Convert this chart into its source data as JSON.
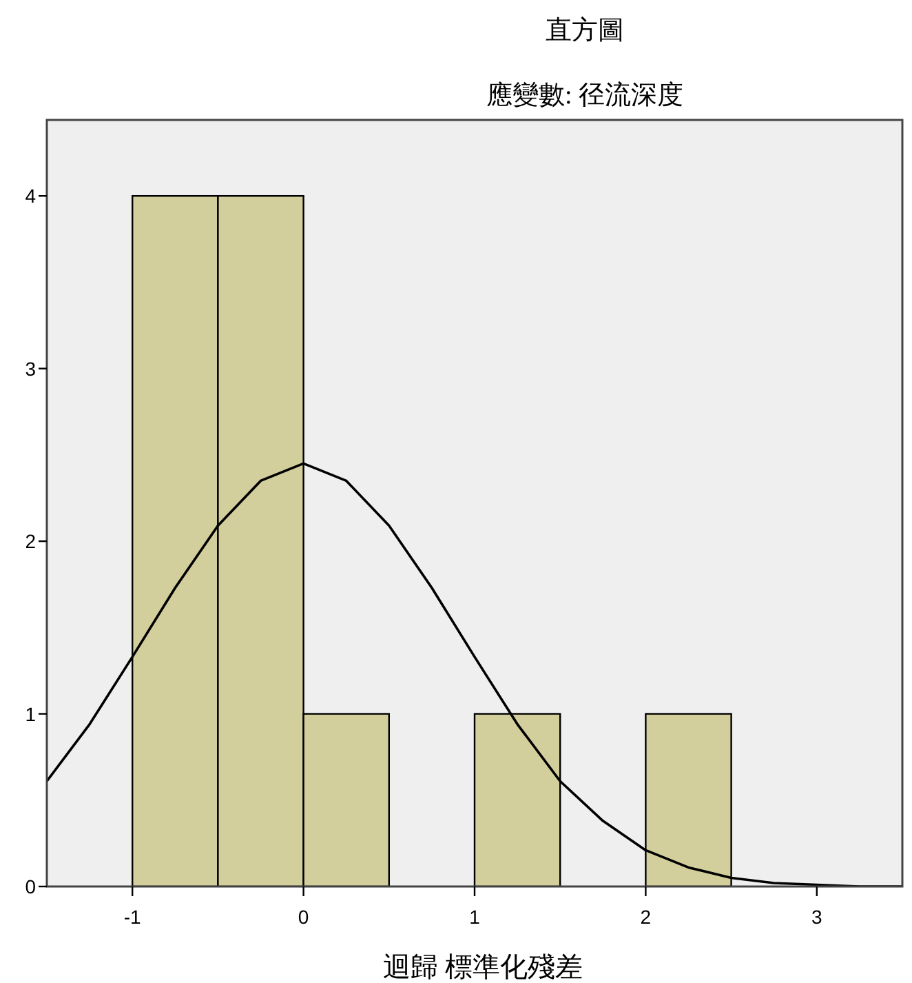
{
  "chart_data": {
    "type": "histogram",
    "title": "直方圖",
    "subtitle": "應變數: 径流深度",
    "xlabel": "迴歸 標準化殘差",
    "bins": [
      -1,
      -0.5,
      0,
      0.5,
      1,
      1.5,
      2,
      2.5
    ],
    "values": [
      4,
      4,
      1,
      0,
      1,
      0,
      1
    ],
    "color": "#d3cf9c",
    "series": [
      {
        "type": "line",
        "color": "#000000",
        "x": [
          -1.5,
          -1.25,
          -1,
          -0.75,
          -0.5,
          -0.25,
          0,
          0.25,
          0.5,
          0.75,
          1,
          1.25,
          1.5,
          1.75,
          2,
          2.25,
          2.5,
          2.75,
          3,
          3.25,
          3.5
        ],
        "values": [
          0.61,
          0.94,
          1.33,
          1.73,
          2.09,
          2.35,
          2.45,
          2.35,
          2.09,
          1.73,
          1.33,
          0.94,
          0.61,
          0.38,
          0.21,
          0.11,
          0.05,
          0.02,
          0.01,
          0,
          0
        ]
      }
    ],
    "xlim": [
      -1.5,
      3.5
    ],
    "ylim": [
      0,
      4.44
    ],
    "xticks": [
      -1,
      0,
      1,
      2,
      3
    ],
    "yticks": [
      0,
      1,
      2,
      3,
      4
    ]
  }
}
